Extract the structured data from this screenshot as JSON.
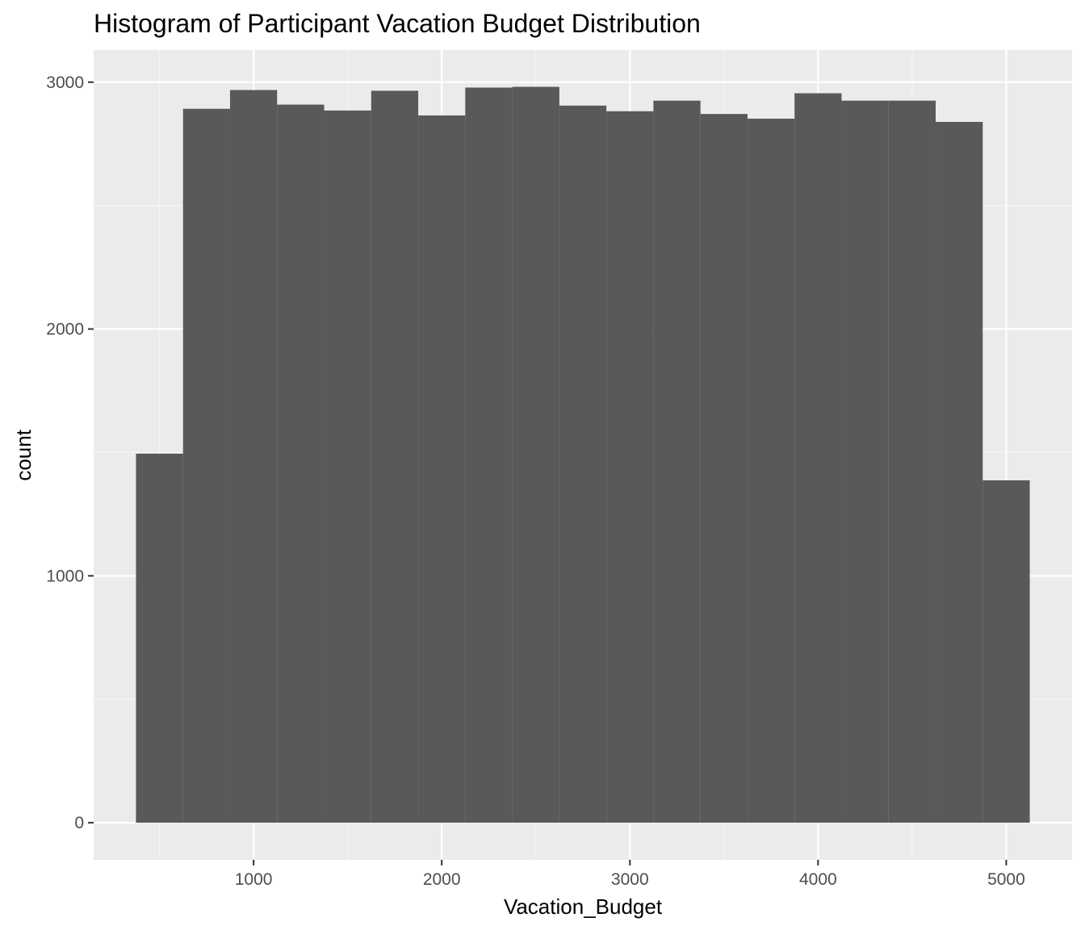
{
  "chart_data": {
    "type": "bar",
    "title": "Histogram of Participant Vacation Budget Distribution",
    "xlabel": "Vacation_Budget",
    "ylabel": "count",
    "xlim": [
      150,
      5350
    ],
    "ylim": [
      -150,
      3130
    ],
    "x_ticks": [
      1000,
      2000,
      3000,
      4000,
      5000
    ],
    "y_ticks": [
      0,
      1000,
      2000,
      3000
    ],
    "x_ticks_labels": [
      "1000",
      "2000",
      "3000",
      "4000",
      "5000"
    ],
    "y_ticks_labels": [
      "0",
      "1000",
      "2000",
      "3000"
    ],
    "grid": true,
    "bin_width": 250,
    "bins": [
      {
        "x0": 375,
        "x1": 625,
        "count": 1495
      },
      {
        "x0": 625,
        "x1": 875,
        "count": 2892
      },
      {
        "x0": 875,
        "x1": 1125,
        "count": 2968
      },
      {
        "x0": 1125,
        "x1": 1375,
        "count": 2909
      },
      {
        "x0": 1375,
        "x1": 1625,
        "count": 2885
      },
      {
        "x0": 1625,
        "x1": 1875,
        "count": 2965
      },
      {
        "x0": 1875,
        "x1": 2125,
        "count": 2865
      },
      {
        "x0": 2125,
        "x1": 2375,
        "count": 2978
      },
      {
        "x0": 2375,
        "x1": 2625,
        "count": 2981
      },
      {
        "x0": 2625,
        "x1": 2875,
        "count": 2905
      },
      {
        "x0": 2875,
        "x1": 3125,
        "count": 2882
      },
      {
        "x0": 3125,
        "x1": 3375,
        "count": 2925
      },
      {
        "x0": 3375,
        "x1": 3625,
        "count": 2871
      },
      {
        "x0": 3625,
        "x1": 3875,
        "count": 2852
      },
      {
        "x0": 3875,
        "x1": 4125,
        "count": 2955
      },
      {
        "x0": 4125,
        "x1": 4375,
        "count": 2925
      },
      {
        "x0": 4375,
        "x1": 4625,
        "count": 2925
      },
      {
        "x0": 4625,
        "x1": 4875,
        "count": 2839
      },
      {
        "x0": 4875,
        "x1": 5125,
        "count": 1387
      }
    ],
    "colors": {
      "panel_background": "#ebebeb",
      "grid_major": "#ffffff",
      "grid_minor": "#f5f5f5",
      "bar_fill": "#595959",
      "tick_color": "#333333"
    }
  }
}
